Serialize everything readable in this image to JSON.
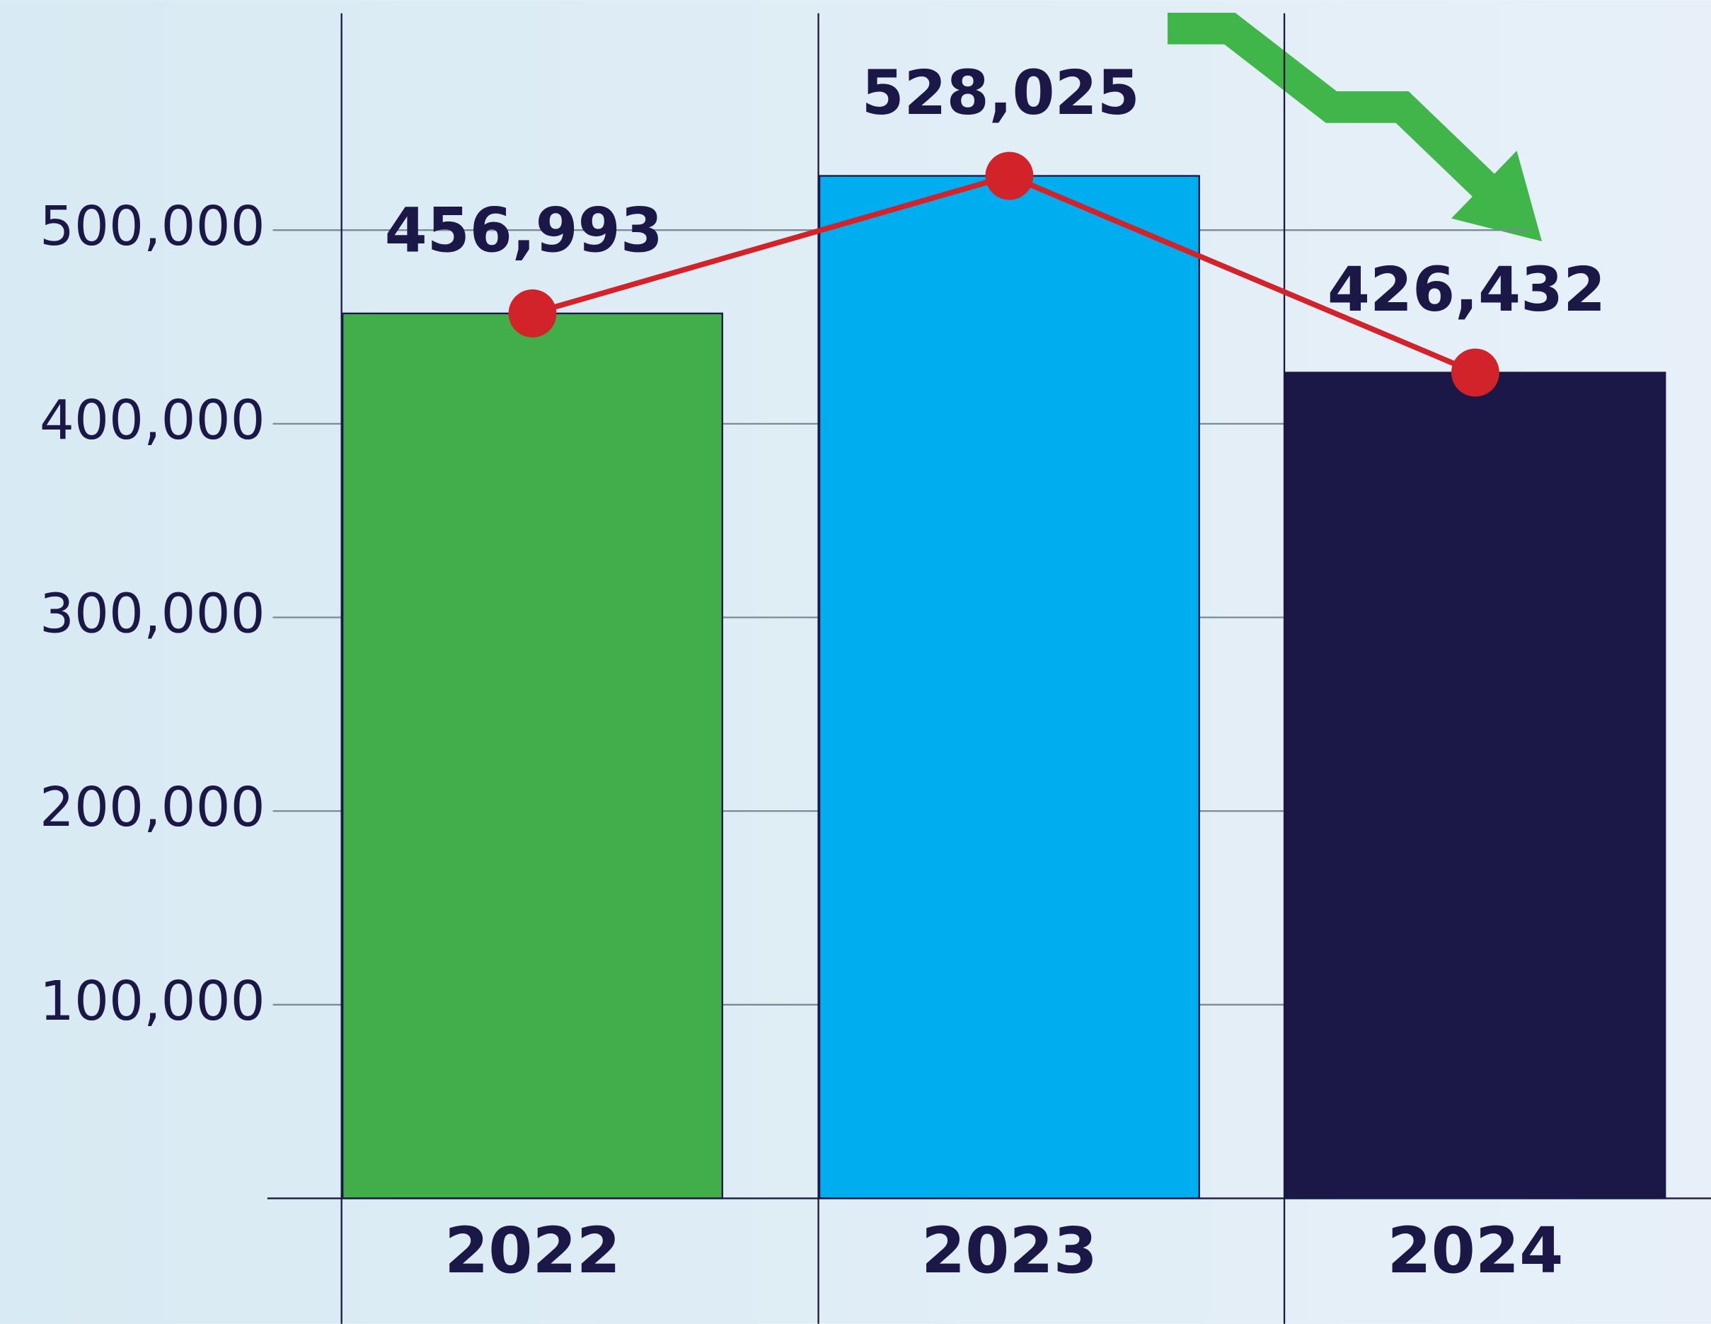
{
  "chart_data": {
    "type": "bar",
    "categories": [
      "2022",
      "2023",
      "2024"
    ],
    "values": [
      456993,
      528025,
      426432
    ],
    "value_labels": [
      "456,993",
      "528,025",
      "426,432"
    ],
    "colors": [
      "#41ae4a",
      "#00aeef",
      "#1b1746"
    ],
    "line_color": "#d2232a",
    "ylim": [
      0,
      612000
    ],
    "yticks": [
      {
        "value": 100000,
        "label": "100,000"
      },
      {
        "value": 200000,
        "label": "200,000"
      },
      {
        "value": 300000,
        "label": "300,000"
      },
      {
        "value": 400000,
        "label": "400,000"
      },
      {
        "value": 500000,
        "label": "500,000"
      }
    ],
    "grid": true
  }
}
